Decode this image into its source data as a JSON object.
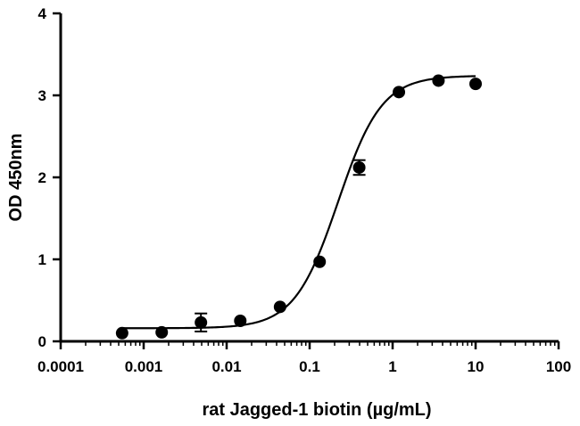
{
  "chart_data": {
    "type": "scatter",
    "xlabel": "rat Jagged-1 biotin (µg/mL)",
    "ylabel": "OD 450nm",
    "xscale": "log",
    "xlim": [
      0.0001,
      100
    ],
    "ylim": [
      0,
      4
    ],
    "xticks": [
      "0.0001",
      "0.001",
      "0.01",
      "0.1",
      "1",
      "10",
      "100"
    ],
    "xtick_values": [
      0.0001,
      0.001,
      0.01,
      0.1,
      1,
      10,
      100
    ],
    "yticks": [
      "0",
      "1",
      "2",
      "3",
      "4"
    ],
    "ytick_values": [
      0,
      1,
      2,
      3,
      4
    ],
    "grid": false,
    "legend": "none",
    "fit": {
      "model": "four-parameter logistic",
      "bottom": 0.16,
      "top": 3.24,
      "ec50": 0.22,
      "hill": 1.65
    },
    "series": [
      {
        "points": [
          {
            "x": 0.00055,
            "y": 0.1,
            "err": 0
          },
          {
            "x": 0.00165,
            "y": 0.11,
            "err": 0
          },
          {
            "x": 0.0049,
            "y": 0.23,
            "err": 0.11
          },
          {
            "x": 0.0146,
            "y": 0.25,
            "err": 0
          },
          {
            "x": 0.044,
            "y": 0.42,
            "err": 0
          },
          {
            "x": 0.132,
            "y": 0.97,
            "err": 0
          },
          {
            "x": 0.396,
            "y": 2.12,
            "err": 0.09
          },
          {
            "x": 1.19,
            "y": 3.04,
            "err": 0
          },
          {
            "x": 3.57,
            "y": 3.18,
            "err": 0
          },
          {
            "x": 10.0,
            "y": 3.14,
            "err": 0
          }
        ]
      }
    ]
  }
}
